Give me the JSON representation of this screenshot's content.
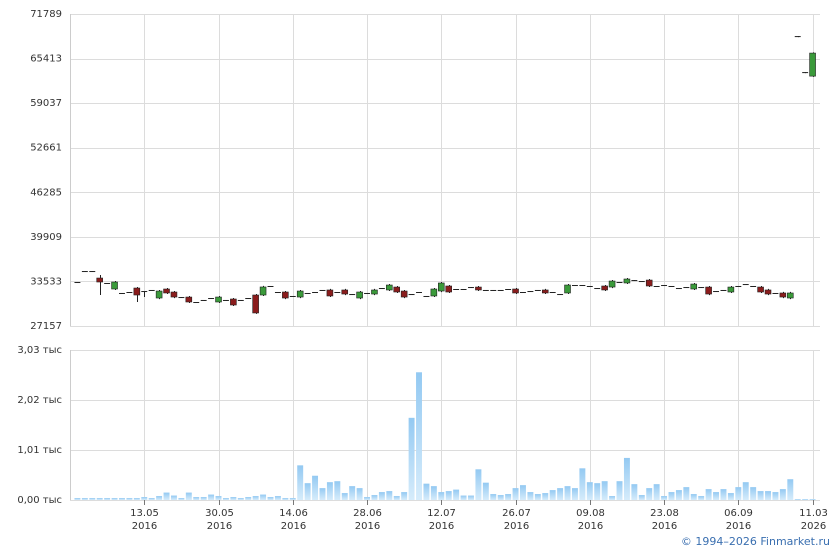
{
  "chart_data": [
    {
      "type": "candlestick",
      "xlim": [
        -1,
        100
      ],
      "ylim": [
        27157,
        71789
      ],
      "yticks": [
        27157,
        33533,
        39909,
        46285,
        52661,
        59037,
        65413,
        71789
      ],
      "grid": true,
      "up_color": "#3a9a3a",
      "down_color": "#8b1c1c",
      "open": [
        33450,
        35020,
        35020,
        34020,
        33310,
        32450,
        31880,
        32020,
        32590,
        32160,
        32310,
        31160,
        32450,
        32020,
        31300,
        31300,
        30590,
        30880,
        31160,
        30590,
        30880,
        31020,
        30880,
        31160,
        31590,
        31590,
        32880,
        32020,
        32020,
        31450,
        31300,
        31880,
        32020,
        32310,
        32310,
        32020,
        32310,
        31730,
        31160,
        31880,
        31730,
        32590,
        32310,
        32730,
        32160,
        31730,
        32020,
        31450,
        31450,
        32160,
        32880,
        32450,
        32450,
        32730,
        32730,
        32310,
        32310,
        32310,
        32450,
        32450,
        32020,
        32160,
        32310,
        32310,
        32020,
        31730,
        31880,
        33020,
        33020,
        32880,
        32590,
        32880,
        32730,
        33450,
        33310,
        33730,
        33590,
        33730,
        32880,
        33020,
        32880,
        32590,
        32730,
        32450,
        32730,
        32730,
        32160,
        32310,
        32020,
        32880,
        33160,
        32880,
        32730,
        32310,
        31880,
        31880,
        31160,
        68630,
        63480,
        62900
      ],
      "high": [
        33450,
        35020,
        35020,
        34450,
        33310,
        33600,
        31880,
        32020,
        32740,
        32160,
        32310,
        32310,
        32600,
        32170,
        31300,
        31450,
        30590,
        30880,
        31160,
        31450,
        30880,
        31170,
        30880,
        31160,
        31740,
        32890,
        32880,
        32020,
        32170,
        31450,
        32310,
        31880,
        32020,
        32310,
        32460,
        32020,
        32460,
        31730,
        32170,
        31880,
        32460,
        32590,
        33170,
        32880,
        32310,
        31730,
        32020,
        31450,
        32600,
        33460,
        33030,
        32450,
        32450,
        32730,
        32880,
        32310,
        32310,
        32310,
        32450,
        32600,
        32020,
        32160,
        32310,
        32460,
        32020,
        31730,
        33170,
        33020,
        33020,
        32880,
        32590,
        33030,
        33740,
        33450,
        34030,
        33730,
        33590,
        33880,
        32880,
        33020,
        32880,
        32590,
        32730,
        33310,
        32730,
        32880,
        32160,
        32310,
        32880,
        32880,
        33160,
        32880,
        32880,
        32460,
        31880,
        32030,
        32030,
        68630,
        63480,
        66300
      ],
      "low": [
        33450,
        35020,
        35020,
        31600,
        33310,
        32300,
        31880,
        32020,
        30590,
        31300,
        32310,
        31010,
        31730,
        31150,
        31300,
        30440,
        30590,
        30880,
        31160,
        30440,
        30880,
        30010,
        30880,
        31160,
        28900,
        31440,
        32880,
        32020,
        31010,
        31450,
        31150,
        31880,
        32020,
        32310,
        31300,
        32020,
        31580,
        31730,
        31010,
        31880,
        31580,
        32590,
        32160,
        31870,
        31150,
        31730,
        32020,
        31450,
        31300,
        32010,
        31870,
        32450,
        32450,
        32730,
        32160,
        32310,
        32310,
        32310,
        32450,
        31730,
        32020,
        32160,
        32310,
        31730,
        32020,
        31730,
        31730,
        33020,
        33020,
        32880,
        32590,
        32160,
        32580,
        33450,
        33160,
        33730,
        33590,
        32730,
        32880,
        33020,
        32880,
        32590,
        32730,
        32300,
        32730,
        31580,
        32160,
        32310,
        31870,
        32880,
        33160,
        32880,
        31870,
        31580,
        31880,
        31150,
        31010,
        68630,
        63480,
        62800
      ],
      "close": [
        33450,
        35020,
        35020,
        33450,
        33310,
        33450,
        31880,
        32020,
        31590,
        32160,
        32310,
        32160,
        31880,
        31300,
        31300,
        30590,
        30590,
        30880,
        31160,
        31300,
        30880,
        30160,
        30880,
        31160,
        29020,
        32740,
        32880,
        32020,
        31160,
        31450,
        32160,
        31880,
        32020,
        32310,
        31450,
        32020,
        31730,
        31730,
        32020,
        31880,
        32310,
        32590,
        33020,
        32020,
        31300,
        31730,
        32020,
        31450,
        32450,
        33310,
        32020,
        32450,
        32450,
        32730,
        32310,
        32310,
        32310,
        32310,
        32450,
        31880,
        32020,
        32160,
        32310,
        31880,
        32020,
        31730,
        33020,
        33020,
        33020,
        32880,
        32590,
        32310,
        33590,
        33450,
        33880,
        33730,
        33590,
        32880,
        32880,
        33020,
        32880,
        32590,
        32730,
        33160,
        32730,
        31730,
        32160,
        32310,
        32730,
        32880,
        33160,
        32880,
        32020,
        31730,
        31880,
        31300,
        31880,
        68630,
        63480,
        66200
      ]
    },
    {
      "type": "bar",
      "xlim": [
        -1,
        100
      ],
      "ylim": [
        0,
        3030
      ],
      "yticks": [
        {
          "value": 0,
          "label": "0,00 тыс"
        },
        {
          "value": 1010,
          "label": "1,01 тыс"
        },
        {
          "value": 2020,
          "label": "2,02 тыс"
        },
        {
          "value": 3030,
          "label": "3,03 тыс"
        }
      ],
      "xticks": [
        {
          "value": 9,
          "label": [
            "13.05",
            "2016"
          ]
        },
        {
          "value": 19,
          "label": [
            "30.05",
            "2016"
          ]
        },
        {
          "value": 29,
          "label": [
            "14.06",
            "2016"
          ]
        },
        {
          "value": 39,
          "label": [
            "28.06",
            "2016"
          ]
        },
        {
          "value": 49,
          "label": [
            "12.07",
            "2016"
          ]
        },
        {
          "value": 59,
          "label": [
            "26.07",
            "2016"
          ]
        },
        {
          "value": 69,
          "label": [
            "09.08",
            "2016"
          ]
        },
        {
          "value": 79,
          "label": [
            "23.08",
            "2016"
          ]
        },
        {
          "value": 89,
          "label": [
            "06.09",
            "2016"
          ]
        },
        {
          "value": 99,
          "label": [
            "11.03",
            "2026"
          ]
        }
      ],
      "grid": true,
      "color": "#93c9f2",
      "values": [
        40,
        40,
        40,
        40,
        40,
        40,
        40,
        40,
        40,
        60,
        40,
        80,
        150,
        90,
        40,
        150,
        60,
        60,
        110,
        80,
        40,
        60,
        40,
        60,
        80,
        110,
        60,
        80,
        40,
        40,
        700,
        340,
        490,
        240,
        360,
        380,
        140,
        280,
        240,
        60,
        100,
        160,
        180,
        80,
        160,
        1660,
        2580,
        330,
        280,
        160,
        180,
        210,
        90,
        90,
        620,
        350,
        120,
        100,
        120,
        240,
        300,
        160,
        120,
        140,
        200,
        240,
        280,
        240,
        640,
        360,
        340,
        380,
        80,
        380,
        850,
        320,
        100,
        240,
        320,
        80,
        160,
        200,
        260,
        120,
        80,
        220,
        160,
        220,
        140,
        260,
        360,
        260,
        180,
        180,
        160,
        220,
        420,
        20,
        20,
        20
      ]
    }
  ],
  "footer": "© 1994–2026 Finmarket.ru"
}
